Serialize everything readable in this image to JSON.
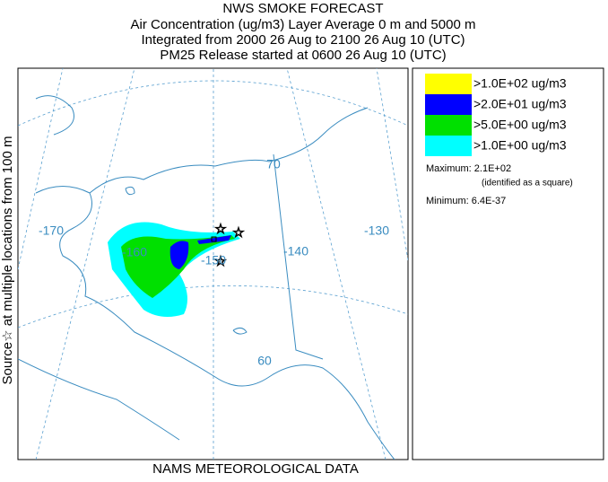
{
  "header": {
    "lines": [
      "NWS SMOKE FORECAST",
      "Air Concentration (ug/m3) Layer Average    0 m and  5000 m",
      "Integrated from 2000 26 Aug to 2100 26 Aug 10 (UTC)",
      "PM25 Release started at 0600 26 Aug 10 (UTC)"
    ]
  },
  "side_label": "Source☆ at multiple locations   from   100 m",
  "footer": "NAMS METEOROLOGICAL DATA",
  "map": {
    "graticule_labels": [
      "-170",
      "-160",
      "-150",
      "-140",
      "-130",
      "70",
      "60"
    ]
  },
  "legend": {
    "entries": [
      {
        "label": ">1.0E+02 ug/m3",
        "color": "#ffff00"
      },
      {
        "label": ">2.0E+01 ug/m3",
        "color": "#0000ff"
      },
      {
        "label": ">5.0E+00 ug/m3",
        "color": "#00e000"
      },
      {
        "label": ">1.0E+00 ug/m3",
        "color": "#00ffff"
      }
    ],
    "maximum": "Maximum: 2.1E+02",
    "maximum_note": "(identified as a square)",
    "minimum": "Minimum: 6.4E-37"
  }
}
